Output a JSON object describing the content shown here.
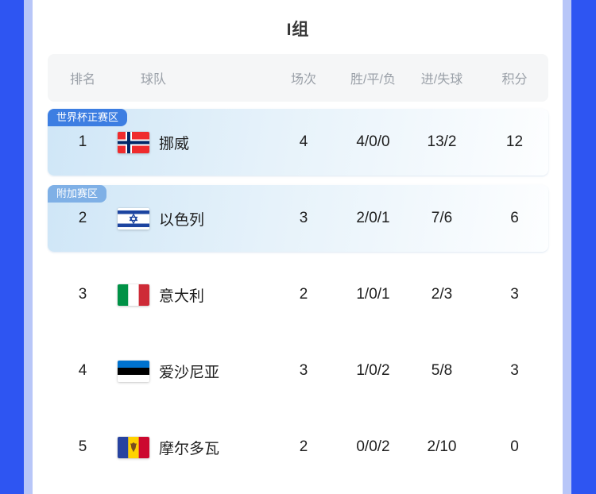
{
  "page": {
    "group_title": "I组"
  },
  "colors": {
    "side_bar_dark": "#2E55F2",
    "side_bar_light": "#B8C6F8",
    "badge_primary": "#3D7EE2",
    "badge_secondary": "#7FB0E6",
    "row_highlight_start": "#CFE6F7",
    "row_highlight_mid": "#E6F2FA",
    "row_highlight_end": "#FDFEFF",
    "header_bg": "#F5F6F7",
    "header_text": "#9AA0A8",
    "body_text": "#1E1E1E",
    "title_text": "#383838"
  },
  "table": {
    "headers": [
      "排名",
      "球队",
      "场次",
      "胜/平/负",
      "进/失球",
      "积分"
    ],
    "rows": [
      {
        "rank": "1",
        "team": "挪威",
        "flag": "norway",
        "badge": "世界杯正赛区",
        "badge_type": "primary",
        "matches": "4",
        "wdl": "4/0/0",
        "goals": "13/2",
        "points": "12",
        "highlight": true
      },
      {
        "rank": "2",
        "team": "以色列",
        "flag": "israel",
        "badge": "附加赛区",
        "badge_type": "secondary",
        "matches": "3",
        "wdl": "2/0/1",
        "goals": "7/6",
        "points": "6",
        "highlight": true
      },
      {
        "rank": "3",
        "team": "意大利",
        "flag": "italy",
        "badge": null,
        "badge_type": null,
        "matches": "2",
        "wdl": "1/0/1",
        "goals": "2/3",
        "points": "3",
        "highlight": false
      },
      {
        "rank": "4",
        "team": "爱沙尼亚",
        "flag": "estonia",
        "badge": null,
        "badge_type": null,
        "matches": "3",
        "wdl": "1/0/2",
        "goals": "5/8",
        "points": "3",
        "highlight": false
      },
      {
        "rank": "5",
        "team": "摩尔多瓦",
        "flag": "moldova",
        "badge": null,
        "badge_type": null,
        "matches": "2",
        "wdl": "0/0/2",
        "goals": "2/10",
        "points": "0",
        "highlight": false
      }
    ]
  }
}
